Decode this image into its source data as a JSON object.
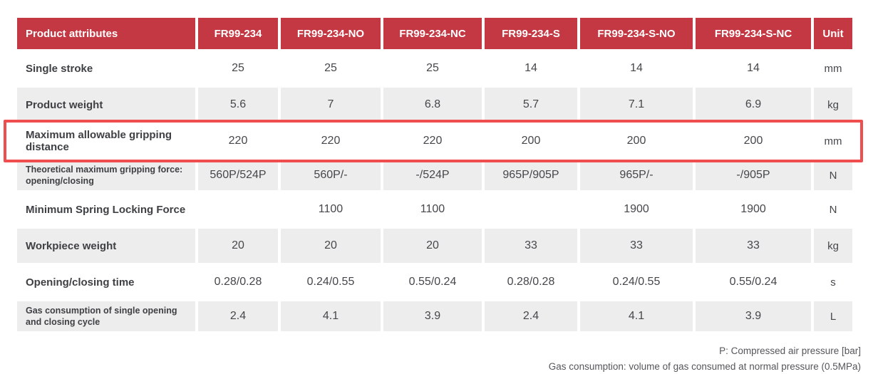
{
  "table": {
    "headers": [
      "Product attributes",
      "FR99-234",
      "FR99-234-NO",
      "FR99-234-NC",
      "FR99-234-S",
      "FR99-234-S-NO",
      "FR99-234-S-NC",
      "Unit"
    ],
    "rows": [
      {
        "label": "Single stroke",
        "values": [
          "25",
          "25",
          "25",
          "14",
          "14",
          "14"
        ],
        "unit": "mm"
      },
      {
        "label": "Product weight",
        "values": [
          "5.6",
          "7",
          "6.8",
          "5.7",
          "7.1",
          "6.9"
        ],
        "unit": "kg"
      },
      {
        "label": "Maximum allowable gripping distance",
        "values": [
          "220",
          "220",
          "220",
          "200",
          "200",
          "200"
        ],
        "unit": "mm",
        "highlighted": true
      },
      {
        "label": "Theoretical maximum gripping force: opening/closing",
        "values": [
          "560P/524P",
          "560P/-",
          "-/524P",
          "965P/905P",
          "965P/-",
          "-/905P"
        ],
        "unit": "N"
      },
      {
        "label": "Minimum Spring Locking Force",
        "values": [
          "",
          "1100",
          "1100",
          "",
          "1900",
          "1900"
        ],
        "unit": "N"
      },
      {
        "label": "Workpiece weight",
        "values": [
          "20",
          "20",
          "20",
          "33",
          "33",
          "33"
        ],
        "unit": "kg"
      },
      {
        "label": "Opening/closing time",
        "values": [
          "0.28/0.28",
          "0.24/0.55",
          "0.55/0.24",
          "0.28/0.28",
          "0.24/0.55",
          "0.55/0.24"
        ],
        "unit": "s"
      },
      {
        "label": "Gas consumption of single opening and closing cycle",
        "values": [
          "2.4",
          "4.1",
          "3.9",
          "2.4",
          "4.1",
          "3.9"
        ],
        "unit": "L"
      }
    ]
  },
  "notes": [
    "P: Compressed air pressure [bar]",
    "Gas consumption: volume of gas consumed at normal pressure (0.5MPa)"
  ],
  "colors": {
    "header_bg": "#C43843",
    "header_text": "#FFFFFF",
    "row_alt_bg": "#EDEDED",
    "highlight_border": "#F04E4E",
    "body_text": "#45474B",
    "note_text": "#54565A"
  }
}
